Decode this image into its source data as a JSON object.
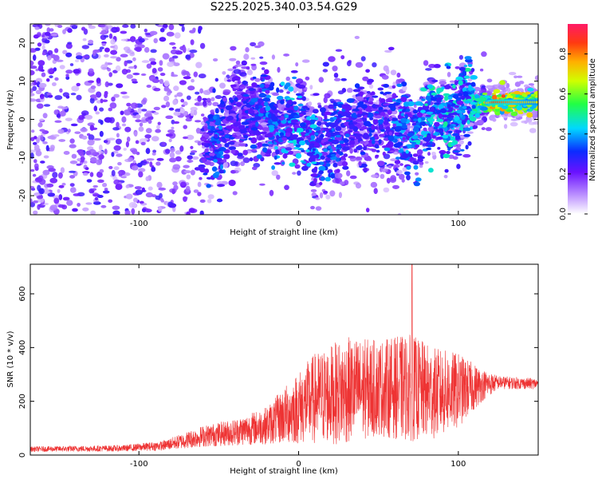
{
  "title": "S225.2025.340.03.54.G29",
  "chart_data": [
    {
      "type": "heatmap",
      "xlabel": "Height of straight line (km)",
      "ylabel": "Frequency (Hz)",
      "xlim": [
        -168,
        150
      ],
      "ylim": [
        -25,
        25
      ],
      "x_ticks": [
        -100,
        0,
        100
      ],
      "x_tick_labels": [
        "-100",
        "0",
        "100"
      ],
      "y_ticks": [
        -20,
        -10,
        0,
        10,
        20
      ],
      "y_tick_labels": [
        "-20",
        "-10",
        "0",
        "10",
        "20"
      ],
      "colorbar": {
        "label": "Normalized spectral amplitude",
        "range": [
          0,
          0.95
        ],
        "ticks": [
          0,
          0.2,
          0.4,
          0.6,
          0.8
        ],
        "tick_labels": [
          "0.0",
          "0.2",
          "0.4",
          "0.6",
          "0.8"
        ]
      },
      "ridge": [
        {
          "x": -100,
          "freq": -5,
          "amp": 0.3
        },
        {
          "x": -60,
          "freq": -7,
          "amp": 0.3
        },
        {
          "x": -50,
          "freq": -6,
          "amp": 0.38
        },
        {
          "x": -40,
          "freq": 0,
          "amp": 0.3
        },
        {
          "x": -25,
          "freq": 3,
          "amp": 0.35
        },
        {
          "x": -15,
          "freq": -2,
          "amp": 0.4
        },
        {
          "x": 0,
          "freq": 0,
          "amp": 0.45
        },
        {
          "x": 10,
          "freq": -8,
          "amp": 0.42
        },
        {
          "x": 40,
          "freq": 0,
          "amp": 0.3
        },
        {
          "x": 75,
          "freq": -3,
          "amp": 0.45
        },
        {
          "x": 82,
          "freq": 0,
          "amp": 0.5
        },
        {
          "x": 88,
          "freq": 2,
          "amp": 0.45
        },
        {
          "x": 95,
          "freq": 1,
          "amp": 0.5
        },
        {
          "x": 100,
          "freq": 3,
          "amp": 0.45
        },
        {
          "x": 110,
          "freq": 4,
          "amp": 0.5
        },
        {
          "x": 122,
          "freq": 4.5,
          "amp": 0.85
        },
        {
          "x": 132,
          "freq": 4.5,
          "amp": 0.8
        },
        {
          "x": 145,
          "freq": 4.5,
          "amp": 0.7
        }
      ]
    },
    {
      "type": "line",
      "xlabel": "Height of straight line (km)",
      "ylabel": "SNR (10 * v/v)",
      "xlim": [
        -168,
        150
      ],
      "ylim": [
        0,
        710
      ],
      "x_ticks": [
        -100,
        0,
        100
      ],
      "x_tick_labels": [
        "-100",
        "0",
        "100"
      ],
      "y_ticks": [
        0,
        200,
        400,
        600
      ],
      "y_tick_labels": [
        "0",
        "200",
        "400",
        "600"
      ],
      "series": [
        {
          "name": "SNR",
          "color": "#ee3333",
          "envelope_x": [
            -168,
            -110,
            -85,
            -60,
            -40,
            -20,
            -5,
            10,
            30,
            50,
            70,
            85,
            100,
            115,
            125,
            150
          ],
          "envelope_mean": [
            22,
            25,
            35,
            70,
            85,
            110,
            160,
            210,
            240,
            250,
            250,
            230,
            240,
            260,
            270,
            265
          ],
          "envelope_spread": [
            10,
            12,
            18,
            40,
            50,
            70,
            120,
            170,
            200,
            180,
            200,
            170,
            140,
            60,
            25,
            20
          ],
          "peak_x": 71,
          "peak_y": 710
        }
      ]
    }
  ]
}
